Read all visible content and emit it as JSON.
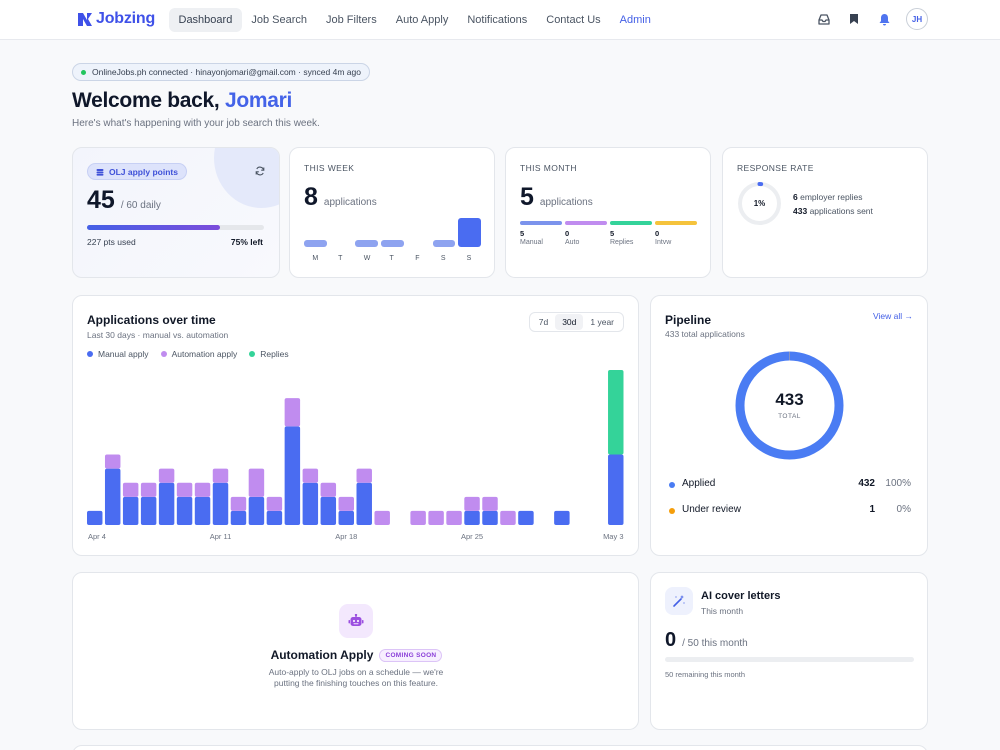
{
  "brand": {
    "name": "Jobzing",
    "color": "#3f51e8"
  },
  "nav": {
    "items": [
      {
        "label": "Dashboard",
        "active": true
      },
      {
        "label": "Job Search"
      },
      {
        "label": "Job Filters"
      },
      {
        "label": "Auto Apply"
      },
      {
        "label": "Notifications"
      },
      {
        "label": "Contact Us"
      },
      {
        "label": "Admin",
        "accent": true
      }
    ],
    "icons": [
      "inbox-icon",
      "bookmark-icon",
      "bell-icon"
    ],
    "avatar_initials": "JH"
  },
  "header": {
    "sync_status": "OnlineJobs.ph connected · hinayonjomari@gmail.com · synced 4m ago",
    "welcome_prefix": "Welcome back,",
    "user_name": "Jomari",
    "subtitle": "Here's what's happening with your job search this week."
  },
  "olj_card": {
    "badge": "OLJ apply points",
    "value": "45",
    "suffix": "/ 60 daily",
    "progress_fraction": 0.75,
    "used_label": "227 pts used",
    "left_label": "75% left"
  },
  "week_card": {
    "label": "THIS WEEK",
    "value": "8",
    "unit": "applications",
    "days": [
      "M",
      "T",
      "W",
      "T",
      "F",
      "S",
      "S"
    ],
    "values": [
      1,
      0,
      1,
      1,
      0,
      1,
      4
    ],
    "max": 4
  },
  "month_card": {
    "label": "THIS MONTH",
    "value": "5",
    "unit": "applications",
    "segments": [
      {
        "value": "5",
        "label": "Manual",
        "color": "#7b93ec"
      },
      {
        "value": "0",
        "label": "Auto",
        "color": "#c08cef"
      },
      {
        "value": "5",
        "label": "Replies",
        "color": "#34d39a"
      },
      {
        "value": "0",
        "label": "Intvw",
        "color": "#f5c33c"
      }
    ]
  },
  "response_card": {
    "label": "RESPONSE RATE",
    "pct_label": "1%",
    "rate": 0.014,
    "line1_value": "6",
    "line1_text": "employer replies",
    "line2_value": "433",
    "line2_text": "applications sent"
  },
  "apps_chart": {
    "title": "Applications over time",
    "subtitle": "Last 30 days · manual vs. automation",
    "ranges": [
      "7d",
      "30d",
      "1 year"
    ],
    "active_range": "30d",
    "legend": [
      {
        "label": "Manual apply",
        "color": "#4a6cf1"
      },
      {
        "label": "Automation apply",
        "color": "#c08cef"
      },
      {
        "label": "Replies",
        "color": "#34d399"
      }
    ]
  },
  "chart_data": {
    "type": "bar",
    "stacked": true,
    "categories": [
      "Apr 4",
      "Apr 5",
      "Apr 6",
      "Apr 7",
      "Apr 8",
      "Apr 9",
      "Apr 10",
      "Apr 11",
      "Apr 12",
      "Apr 13",
      "Apr 14",
      "Apr 15",
      "Apr 16",
      "Apr 17",
      "Apr 18",
      "Apr 19",
      "Apr 20",
      "Apr 21",
      "Apr 22",
      "Apr 23",
      "Apr 24",
      "Apr 25",
      "Apr 26",
      "Apr 27",
      "Apr 28",
      "Apr 29",
      "Apr 30",
      "May 1",
      "May 2",
      "May 3"
    ],
    "tick_labels": [
      "Apr 4",
      "Apr 11",
      "Apr 18",
      "Apr 25",
      "May 3"
    ],
    "series": [
      {
        "name": "Manual apply",
        "color": "#4a6cf1",
        "values": [
          1,
          4,
          2,
          2,
          3,
          2,
          2,
          3,
          1,
          2,
          1,
          7,
          3,
          2,
          1,
          3,
          0,
          0,
          0,
          0,
          0,
          1,
          1,
          0,
          1,
          0,
          1,
          0,
          0,
          5
        ]
      },
      {
        "name": "Automation apply",
        "color": "#c08cef",
        "values": [
          0,
          1,
          1,
          1,
          1,
          1,
          1,
          1,
          1,
          2,
          1,
          2,
          1,
          1,
          1,
          1,
          1,
          0,
          1,
          1,
          1,
          1,
          1,
          1,
          0,
          0,
          0,
          0,
          0,
          0
        ]
      },
      {
        "name": "Replies",
        "color": "#34d399",
        "values": [
          0,
          0,
          0,
          0,
          0,
          0,
          0,
          0,
          0,
          0,
          0,
          0,
          0,
          0,
          0,
          0,
          0,
          0,
          0,
          0,
          0,
          0,
          0,
          0,
          0,
          0,
          0,
          0,
          0,
          6
        ]
      }
    ]
  },
  "pipeline": {
    "title": "Pipeline",
    "subtitle": "433 total applications",
    "view_all": "View all →",
    "total": "433",
    "total_label": "TOTAL",
    "rows": [
      {
        "name": "Applied",
        "count": "432",
        "pct": "100%",
        "color": "#4a7cf3",
        "value": 432
      },
      {
        "name": "Under review",
        "count": "1",
        "pct": "0%",
        "color": "#f59e0b",
        "value": 1
      }
    ]
  },
  "automation": {
    "title": "Automation Apply",
    "badge": "COMING SOON",
    "description": "Auto-apply to OLJ jobs on a schedule — we're putting the finishing touches on this feature."
  },
  "ai_letters": {
    "title": "AI cover letters",
    "subtitle": "This month",
    "value": "0",
    "suffix": "/ 50 this month",
    "remaining": "50 remaining this month",
    "used_fraction": 0
  }
}
